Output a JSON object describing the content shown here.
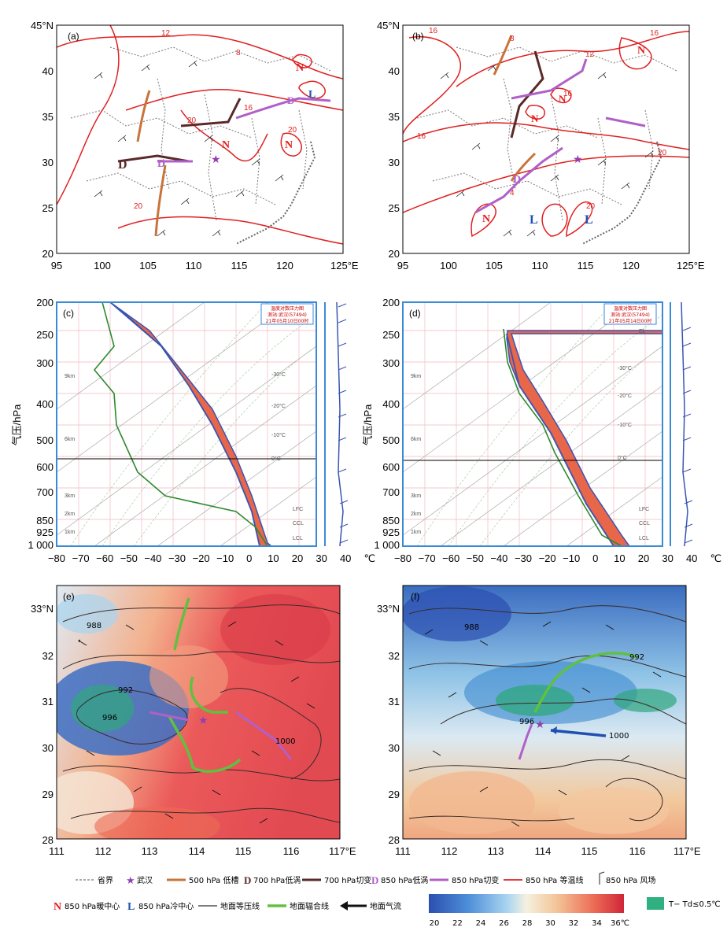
{
  "panels": {
    "a": {
      "label": "(a)"
    },
    "b": {
      "label": "(b)"
    },
    "c": {
      "label": "(c)",
      "box": [
        "温度对数压力图",
        "测站:武汉(57494)",
        "21年05月10日00时"
      ]
    },
    "d": {
      "label": "(d)",
      "box": [
        "温度对数压力图",
        "测站:武汉(57494)",
        "21年05月14日00时"
      ]
    },
    "e": {
      "label": "(e)"
    },
    "f": {
      "label": "(f)"
    }
  },
  "map_axes": {
    "lat_ticks": [
      "45°N",
      "40",
      "35",
      "30",
      "25",
      "20"
    ],
    "lon_ticks": [
      "95",
      "100",
      "105",
      "110",
      "115",
      "120",
      "125°E"
    ]
  },
  "skewt_axes": {
    "pressure_ticks": [
      "200",
      "250",
      "300",
      "400",
      "500",
      "600",
      "700",
      "850",
      "925",
      "1 000"
    ],
    "temp_ticks": [
      "−80",
      "−70",
      "−60",
      "−50",
      "−40",
      "−30",
      "−20",
      "−10",
      "0",
      "10",
      "20",
      "30",
      "40",
      "℃"
    ],
    "ylabel": "气压/hPa",
    "height_marks": [
      "9km",
      "6km",
      "3km",
      "2km",
      "1km"
    ],
    "level_marks": [
      "LFC",
      "CCL",
      "LCL"
    ],
    "el_mark": "EL",
    "iso_marks": [
      "-30°C",
      "-20°C",
      "-10°C",
      "0°C"
    ]
  },
  "zoom_axes": {
    "lat_ticks": [
      "33°N",
      "32",
      "31",
      "30",
      "29",
      "28"
    ],
    "lon_ticks": [
      "111",
      "112",
      "113",
      "114",
      "115",
      "116",
      "117°E"
    ]
  },
  "map_labels": {
    "a": [
      "12",
      "8",
      "16",
      "20",
      "20",
      "20"
    ],
    "b": [
      "16",
      "8",
      "12",
      "16",
      "16",
      "20",
      "4",
      "20",
      "16"
    ]
  },
  "pressure_labels": [
    "988",
    "992",
    "996",
    "1000"
  ],
  "legend": {
    "row1": [
      {
        "key": "province",
        "text": "省界"
      },
      {
        "key": "wuhan",
        "text": "武汉"
      },
      {
        "key": "trough",
        "text": "500 hPa 低槽"
      },
      {
        "key": "vortex700",
        "symbol": "D",
        "text": "700 hPa低涡"
      },
      {
        "key": "shear700",
        "text": "700 hPa切变"
      },
      {
        "key": "vortex850",
        "symbol": "D",
        "text": "850 hPa低涡"
      },
      {
        "key": "shear850",
        "text": "850 hPa切变"
      },
      {
        "key": "isotherm",
        "text": "850 hPa 等温线"
      },
      {
        "key": "wind",
        "text": "850 hPa 风场"
      }
    ],
    "row2": [
      {
        "key": "warm",
        "symbol": "N",
        "text": "850 hPa暖中心"
      },
      {
        "key": "cold",
        "symbol": "L",
        "text": "850 hPa冷中心"
      },
      {
        "key": "isobar",
        "text": "地面等压线"
      },
      {
        "key": "convergence",
        "text": "地面辐合线"
      },
      {
        "key": "flow",
        "text": "地面气流"
      }
    ],
    "colorbar_ticks": [
      "20",
      "22",
      "24",
      "26",
      "28",
      "30",
      "32",
      "34",
      "36℃"
    ],
    "moist_text": "T− Td≤0.5℃"
  },
  "colors": {
    "isotherm": "#e02020",
    "trough": "#c8743a",
    "shear700": "#5a2a2a",
    "shear850": "#b060c8",
    "warm": "#e02020",
    "cold": "#2050b0",
    "cape": "#e8664a",
    "temp_curve": "#3a55b0",
    "dew_curve": "#2e8a2e",
    "convergence": "#60c040",
    "moist": "#30b080"
  }
}
